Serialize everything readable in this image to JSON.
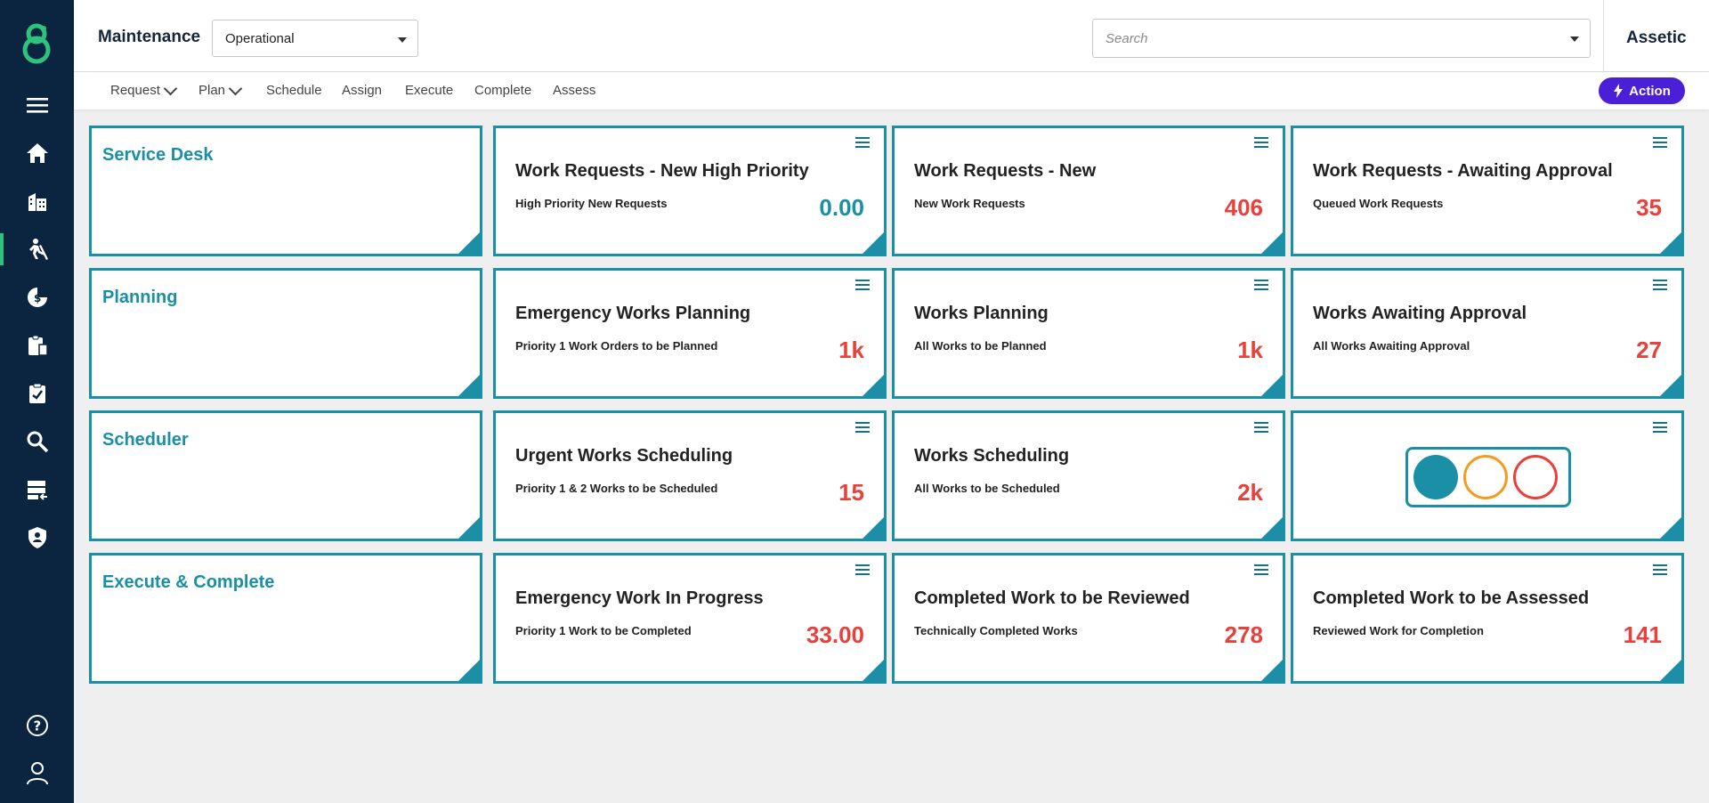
{
  "header": {
    "title": "Maintenance",
    "mode_select": "Operational",
    "search_placeholder": "Search",
    "brand": "Assetic"
  },
  "nav": {
    "items": [
      {
        "label": "Request",
        "dropdown": true
      },
      {
        "label": "Plan",
        "dropdown": true
      },
      {
        "label": "Schedule",
        "dropdown": false
      },
      {
        "label": "Assign",
        "dropdown": false
      },
      {
        "label": "Execute",
        "dropdown": false
      },
      {
        "label": "Complete",
        "dropdown": false
      },
      {
        "label": "Assess",
        "dropdown": false
      }
    ],
    "action_label": "Action"
  },
  "sidebar": {
    "icons": [
      "menu-icon",
      "home-icon",
      "building-icon",
      "maintenance-worker-icon",
      "finance-icon",
      "clipboard-icon",
      "task-clipboard-icon",
      "search-icon",
      "data-import-icon",
      "shield-user-icon",
      "help-icon",
      "user-icon"
    ],
    "active": "maintenance-worker-icon"
  },
  "rows": [
    {
      "section": "Service Desk",
      "tiles": [
        {
          "title": "Work Requests - New High Priority",
          "subtitle": "High Priority New Requests",
          "value": "0.00",
          "value_color": "teal"
        },
        {
          "title": "Work Requests - New",
          "subtitle": "New Work Requests",
          "value": "406",
          "value_color": "red"
        },
        {
          "title": "Work Requests - Awaiting Approval",
          "subtitle": "Queued Work Requests",
          "value": "35",
          "value_color": "red"
        }
      ]
    },
    {
      "section": "Planning",
      "tiles": [
        {
          "title": "Emergency Works Planning",
          "subtitle": "Priority 1 Work Orders to be Planned",
          "value": "1k",
          "value_color": "red"
        },
        {
          "title": "Works Planning",
          "subtitle": "All Works to be Planned",
          "value": "1k",
          "value_color": "red"
        },
        {
          "title": "Works Awaiting Approval",
          "subtitle": "All Works Awaiting Approval",
          "value": "27",
          "value_color": "red"
        }
      ]
    },
    {
      "section": "Scheduler",
      "tiles": [
        {
          "title": "Urgent Works Scheduling",
          "subtitle": "Priority 1 & 2 Works to be Scheduled",
          "value": "15",
          "value_color": "red"
        },
        {
          "title": "Works Scheduling",
          "subtitle": "All Works to be Scheduled",
          "value": "2k",
          "value_color": "red"
        },
        {
          "traffic_light": [
            "#1a8fa5",
            "#f39c1f",
            "#e8413c"
          ]
        }
      ]
    },
    {
      "section": "Execute & Complete",
      "tiles": [
        {
          "title": "Emergency Work In Progress",
          "subtitle": "Priority 1 Work to be Completed",
          "value": "33.00",
          "value_color": "red"
        },
        {
          "title": "Completed Work to be Reviewed",
          "subtitle": "Technically Completed Works",
          "value": "278",
          "value_color": "red"
        },
        {
          "title": "Completed Work to be Assessed",
          "subtitle": "Reviewed Work for Completion",
          "value": "141",
          "value_color": "red"
        }
      ]
    }
  ],
  "colors": {
    "sidebar": "#0b2540",
    "accent": "#1a8fa5",
    "alert": "#e8413c",
    "action": "#4b1fd8"
  }
}
